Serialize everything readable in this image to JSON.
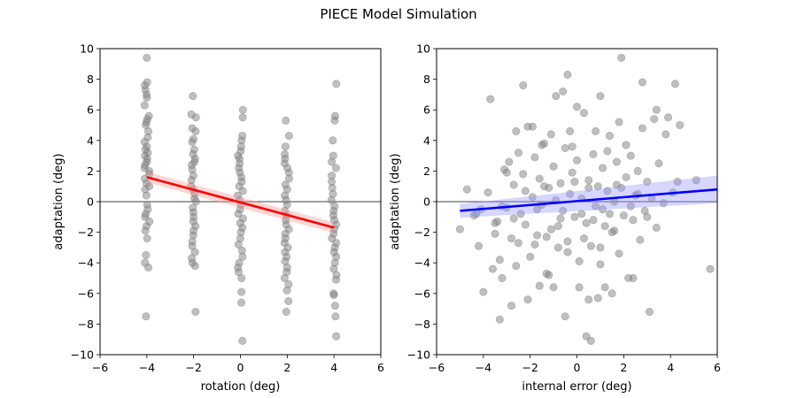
{
  "figure": {
    "title": "PIECE Model Simulation"
  },
  "chart_data": [
    {
      "type": "scatter",
      "subplot": "left",
      "xlabel": "rotation (deg)",
      "ylabel": "adaptation (deg)",
      "xlim": [
        -6,
        6
      ],
      "ylim": [
        -10,
        10
      ],
      "xticks": [
        -6,
        -4,
        -2,
        0,
        2,
        4,
        6
      ],
      "yticks": [
        -10,
        -8,
        -6,
        -4,
        -2,
        0,
        2,
        4,
        6,
        8,
        10
      ],
      "grid": false,
      "zero_line": true,
      "point_color": "#808080",
      "regression": {
        "color": "#ff0000",
        "band_color": "#ff9999",
        "x": [
          -4,
          4
        ],
        "y": [
          1.6,
          -1.7
        ],
        "ci_width": [
          0.35,
          0.35
        ]
      },
      "series": [
        {
          "x": -4,
          "y": [
            9.4,
            7.8,
            7.6,
            7.3,
            7.0,
            6.8,
            6.3,
            5.6,
            5.4,
            5.2,
            5.0,
            4.6,
            4.2,
            3.9,
            3.6,
            3.4,
            3.2,
            3.0,
            2.8,
            2.6,
            2.4,
            2.2,
            2.0,
            1.8,
            1.5,
            1.2,
            1.0,
            0.8,
            0.4,
            -0.2,
            -0.5,
            -0.8,
            -1.0,
            -1.3,
            -1.6,
            -1.9,
            -2.4,
            -3.5,
            -4.0,
            -4.3,
            -7.5
          ]
        },
        {
          "x": -2,
          "y": [
            6.9,
            5.7,
            5.5,
            4.8,
            4.6,
            4.1,
            3.9,
            3.4,
            3.1,
            2.8,
            2.6,
            2.4,
            2.1,
            1.7,
            1.4,
            1.0,
            0.8,
            0.5,
            0.2,
            0.0,
            -0.4,
            -0.7,
            -1.0,
            -1.3,
            -1.6,
            -1.9,
            -2.2,
            -2.6,
            -2.9,
            -3.3,
            -3.7,
            -4.0,
            -4.2,
            -7.2
          ]
        },
        {
          "x": 0,
          "y": [
            6.0,
            5.5,
            4.3,
            4.0,
            3.6,
            3.3,
            3.0,
            2.8,
            2.5,
            2.2,
            1.9,
            1.6,
            1.3,
            1.0,
            0.7,
            0.4,
            0.1,
            -0.2,
            -0.5,
            -0.8,
            -1.1,
            -1.4,
            -1.7,
            -2.0,
            -2.4,
            -2.8,
            -3.2,
            -3.6,
            -4.0,
            -4.3,
            -4.6,
            -5.0,
            -5.9,
            -6.6,
            -9.1
          ]
        },
        {
          "x": 2,
          "y": [
            5.3,
            4.3,
            3.6,
            3.1,
            2.8,
            2.5,
            2.2,
            1.9,
            1.5,
            1.1,
            0.8,
            0.4,
            0.1,
            -0.2,
            -0.6,
            -0.9,
            -1.2,
            -1.5,
            -1.8,
            -2.1,
            -2.4,
            -2.7,
            -3.0,
            -3.3,
            -3.6,
            -3.9,
            -4.3,
            -4.6,
            -5.0,
            -5.4,
            -5.8,
            -6.5,
            -7.2
          ]
        },
        {
          "x": 4,
          "y": [
            7.7,
            5.6,
            5.3,
            4.0,
            3.0,
            2.6,
            2.2,
            1.7,
            1.3,
            0.9,
            0.5,
            0.1,
            -0.3,
            -0.6,
            -0.9,
            -1.2,
            -1.5,
            -1.8,
            -2.1,
            -2.4,
            -2.7,
            -3.0,
            -3.3,
            -3.6,
            -4.0,
            -4.4,
            -4.8,
            -5.1,
            -6.0,
            -6.1,
            -6.8,
            -7.5,
            -8.8
          ]
        }
      ]
    },
    {
      "type": "scatter",
      "subplot": "right",
      "xlabel": "internal error (deg)",
      "ylabel": "adaptation (deg)",
      "xlim": [
        -6,
        6
      ],
      "ylim": [
        -10,
        10
      ],
      "xticks": [
        -6,
        -4,
        -2,
        0,
        2,
        4,
        6
      ],
      "yticks": [
        -10,
        -8,
        -6,
        -4,
        -2,
        0,
        2,
        4,
        6,
        8,
        10
      ],
      "grid": false,
      "zero_line": true,
      "point_color": "#808080",
      "regression": {
        "color": "#0000ff",
        "band_color": "#9999ff",
        "x": [
          -5,
          6
        ],
        "y": [
          -0.6,
          0.8
        ],
        "ci_width": [
          0.45,
          0.9
        ]
      },
      "points": [
        [
          -5.0,
          -1.8
        ],
        [
          -4.7,
          0.8
        ],
        [
          -4.4,
          -0.9
        ],
        [
          -4.2,
          -2.9
        ],
        [
          -4.1,
          -0.5
        ],
        [
          -4.0,
          -5.9
        ],
        [
          -3.8,
          0.6
        ],
        [
          -3.6,
          -4.4
        ],
        [
          -3.5,
          -2.1
        ],
        [
          -3.4,
          -1.3
        ],
        [
          -3.3,
          -3.8
        ],
        [
          -3.2,
          -5.0
        ],
        [
          -3.1,
          2.1
        ],
        [
          -3.0,
          -0.4
        ],
        [
          -2.9,
          2.6
        ],
        [
          -2.8,
          -2.4
        ],
        [
          -2.7,
          1.1
        ],
        [
          -2.6,
          -4.2
        ],
        [
          -2.5,
          3.2
        ],
        [
          -2.4,
          -0.8
        ],
        [
          -2.3,
          1.8
        ],
        [
          -2.2,
          -1.5
        ],
        [
          -2.1,
          4.9
        ],
        [
          -2.0,
          -3.6
        ],
        [
          -1.9,
          0.3
        ],
        [
          -1.8,
          2.9
        ],
        [
          -1.7,
          -2.2
        ],
        [
          -1.6,
          1.5
        ],
        [
          -1.5,
          -0.2
        ],
        [
          -1.4,
          3.8
        ],
        [
          -1.3,
          -4.7
        ],
        [
          -1.2,
          0.9
        ],
        [
          -1.1,
          -1.8
        ],
        [
          -1.0,
          2.3
        ],
        [
          -0.9,
          6.9
        ],
        [
          -0.8,
          -3.0
        ],
        [
          -0.7,
          1.2
        ],
        [
          -0.6,
          -0.6
        ],
        [
          -0.5,
          3.5
        ],
        [
          -0.4,
          -2.6
        ],
        [
          -0.3,
          0.5
        ],
        [
          -0.2,
          1.9
        ],
        [
          -0.1,
          -1.0
        ],
        [
          0.0,
          2.7
        ],
        [
          0.1,
          -3.9
        ],
        [
          0.2,
          0.2
        ],
        [
          0.3,
          5.8
        ],
        [
          0.4,
          -1.4
        ],
        [
          0.5,
          1.4
        ],
        [
          0.6,
          -2.9
        ],
        [
          0.7,
          3.1
        ],
        [
          0.8,
          -0.3
        ],
        [
          0.9,
          1.0
        ],
        [
          1.0,
          -4.1
        ],
        [
          1.1,
          2.2
        ],
        [
          1.2,
          -1.6
        ],
        [
          1.3,
          0.7
        ],
        [
          1.4,
          4.3
        ],
        [
          1.5,
          -2.0
        ],
        [
          1.6,
          0.0
        ],
        [
          1.7,
          2.6
        ],
        [
          1.8,
          -3.4
        ],
        [
          1.9,
          9.4
        ],
        [
          2.0,
          -0.9
        ],
        [
          2.1,
          1.6
        ],
        [
          2.2,
          -5.0
        ],
        [
          2.3,
          3.0
        ],
        [
          2.4,
          -1.2
        ],
        [
          2.5,
          0.4
        ],
        [
          2.6,
          2.0
        ],
        [
          2.7,
          -2.5
        ],
        [
          2.8,
          7.8
        ],
        [
          2.9,
          -0.6
        ],
        [
          3.0,
          1.3
        ],
        [
          3.1,
          -7.2
        ],
        [
          3.2,
          0.2
        ],
        [
          3.3,
          5.4
        ],
        [
          3.4,
          -1.7
        ],
        [
          3.5,
          2.5
        ],
        [
          3.7,
          -0.1
        ],
        [
          3.8,
          4.4
        ],
        [
          4.1,
          0.6
        ],
        [
          4.2,
          7.7
        ],
        [
          4.3,
          1.3
        ],
        [
          4.4,
          5.0
        ],
        [
          5.1,
          1.4
        ],
        [
          5.7,
          -4.4
        ],
        [
          -3.7,
          6.7
        ],
        [
          -2.3,
          7.6
        ],
        [
          -0.6,
          7.2
        ],
        [
          -0.4,
          8.3
        ],
        [
          0.0,
          6.2
        ],
        [
          1.0,
          6.9
        ],
        [
          3.4,
          6.0
        ],
        [
          -3.3,
          -7.7
        ],
        [
          -2.8,
          -6.8
        ],
        [
          -2.1,
          -6.4
        ],
        [
          -0.5,
          -7.5
        ],
        [
          0.4,
          -8.8
        ],
        [
          0.5,
          -6.4
        ],
        [
          0.9,
          -6.3
        ],
        [
          0.6,
          -9.1
        ],
        [
          1.2,
          -5.6
        ],
        [
          1.5,
          -6.0
        ],
        [
          2.4,
          -5.0
        ],
        [
          -1.6,
          -5.5
        ],
        [
          -1.0,
          -5.6
        ],
        [
          0.1,
          -5.6
        ],
        [
          -2.5,
          -2.7
        ],
        [
          -1.2,
          -4.8
        ],
        [
          -0.3,
          4.6
        ],
        [
          0.8,
          4.6
        ],
        [
          1.8,
          5.2
        ],
        [
          2.8,
          4.8
        ],
        [
          -1.9,
          4.9
        ],
        [
          -1.1,
          4.4
        ],
        [
          -1.5,
          3.7
        ],
        [
          -2.6,
          4.6
        ],
        [
          -0.2,
          3.6
        ],
        [
          1.3,
          3.3
        ],
        [
          2.1,
          3.7
        ],
        [
          3.9,
          5.5
        ],
        [
          -4.3,
          -0.8
        ],
        [
          -3.2,
          -0.3
        ],
        [
          -3.0,
          1.9
        ],
        [
          -1.3,
          -2.3
        ],
        [
          -0.7,
          -1.1
        ],
        [
          0.3,
          -2.4
        ],
        [
          1.1,
          -0.5
        ],
        [
          1.9,
          0.9
        ],
        [
          -2.2,
          0.7
        ],
        [
          -1.7,
          -0.5
        ],
        [
          -0.9,
          0.1
        ],
        [
          0.5,
          0.9
        ],
        [
          1.4,
          -0.8
        ],
        [
          2.3,
          -0.3
        ],
        [
          -2.7,
          -1.1
        ],
        [
          -0.1,
          1.3
        ],
        [
          0.7,
          -1.2
        ],
        [
          1.7,
          1.1
        ],
        [
          -1.4,
          1.0
        ],
        [
          -0.8,
          -1.6
        ],
        [
          0.2,
          -0.8
        ],
        [
          1.6,
          -1.9
        ],
        [
          2.6,
          0.5
        ],
        [
          -3.5,
          -1.4
        ],
        [
          -1.8,
          -2.8
        ],
        [
          -0.4,
          -3.3
        ],
        [
          1.0,
          -3.0
        ],
        [
          3.0,
          -1.0
        ]
      ]
    }
  ]
}
